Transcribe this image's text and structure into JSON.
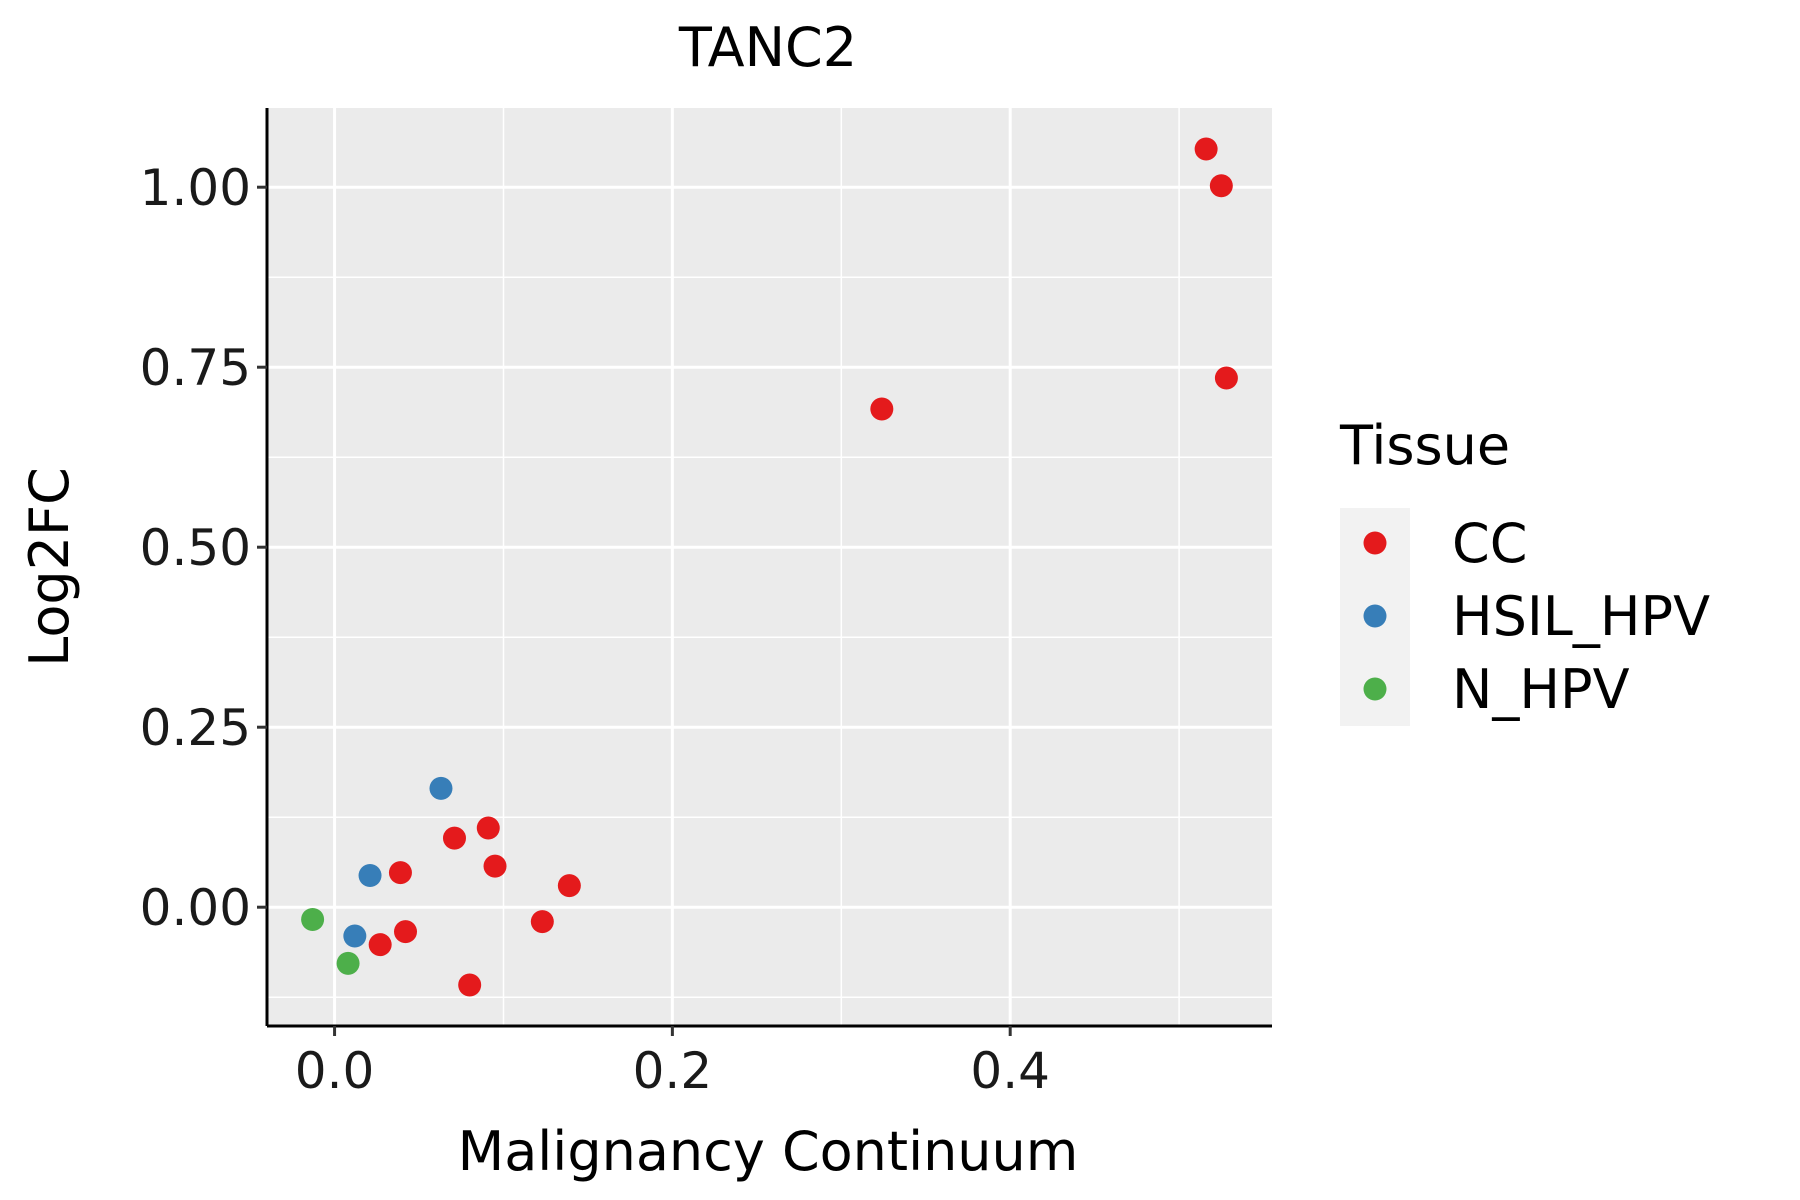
{
  "chart_data": {
    "type": "scatter",
    "title": "TANC2",
    "xlabel": "Malignancy Continuum",
    "ylabel": "Log2FC",
    "xlim": [
      -0.04,
      0.555
    ],
    "ylim": [
      -0.165,
      1.11
    ],
    "xticks": [
      0.0,
      0.2,
      0.4
    ],
    "xtick_labels": [
      "0.0",
      "0.2",
      "0.4"
    ],
    "yticks": [
      0.0,
      0.25,
      0.5,
      0.75,
      1.0
    ],
    "ytick_labels": [
      "0.00",
      "0.25",
      "0.50",
      "0.75",
      "1.00"
    ],
    "grid": true,
    "legend": {
      "title": "Tissue",
      "position": "right"
    },
    "series": [
      {
        "name": "CC",
        "color": "#E41A1C",
        "points": [
          {
            "x": 0.516,
            "y": 1.053
          },
          {
            "x": 0.525,
            "y": 1.002
          },
          {
            "x": 0.528,
            "y": 0.735
          },
          {
            "x": 0.324,
            "y": 0.692
          },
          {
            "x": 0.091,
            "y": 0.11
          },
          {
            "x": 0.071,
            "y": 0.096
          },
          {
            "x": 0.095,
            "y": 0.057
          },
          {
            "x": 0.039,
            "y": 0.048
          },
          {
            "x": 0.139,
            "y": 0.03
          },
          {
            "x": 0.123,
            "y": -0.02
          },
          {
            "x": 0.042,
            "y": -0.034
          },
          {
            "x": 0.027,
            "y": -0.052
          },
          {
            "x": 0.08,
            "y": -0.108
          }
        ]
      },
      {
        "name": "HSIL_HPV",
        "color": "#377EB8",
        "points": [
          {
            "x": 0.063,
            "y": 0.165
          },
          {
            "x": 0.021,
            "y": 0.044
          },
          {
            "x": 0.012,
            "y": -0.04
          }
        ]
      },
      {
        "name": "N_HPV",
        "color": "#4DAF4A",
        "points": [
          {
            "x": -0.013,
            "y": -0.017
          },
          {
            "x": 0.008,
            "y": -0.078
          }
        ]
      }
    ]
  }
}
